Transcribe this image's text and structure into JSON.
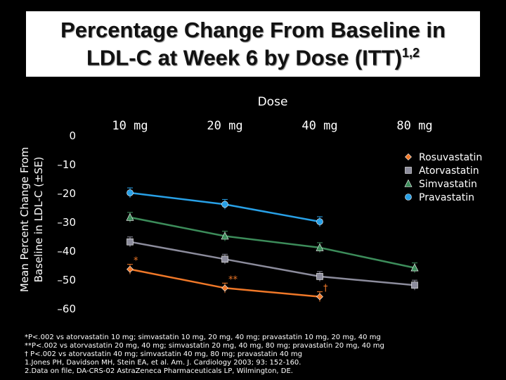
{
  "title": {
    "line1": "Percentage Change From Baseline in",
    "line2": "LDL-C at Week 6 by Dose (ITT)",
    "refs": "1,2"
  },
  "colors": {
    "background": "#000000",
    "Rosuvastatin": "#f07828",
    "Atorvastatin": "#8c8c9c",
    "Simvastatin": "#3c8c5a",
    "Pravastatin": "#28a0e6"
  },
  "chart_data": {
    "type": "line",
    "title": "Percentage Change From Baseline in LDL-C at Week 6 by Dose (ITT)",
    "xlabel": "Dose",
    "ylabel": "Mean Percent Change From Baseline in LDL-C (±SE)",
    "categories": [
      "10 mg",
      "20 mg",
      "40 mg",
      "80 mg"
    ],
    "ylim": [
      -60,
      0
    ],
    "yticks": [
      0,
      -10,
      -20,
      -30,
      -40,
      -50,
      -60
    ],
    "ytick_labels": [
      "0",
      "–10",
      "–20",
      "–30",
      "–40",
      "–50",
      "–60"
    ],
    "grid": false,
    "legend_position": "top-right",
    "series": [
      {
        "name": "Rosuvastatin",
        "marker": "diamond",
        "values": [
          -46.5,
          -53,
          -56,
          null
        ],
        "annotations": [
          "*",
          "**",
          "†",
          null
        ]
      },
      {
        "name": "Atorvastatin",
        "marker": "square",
        "values": [
          -37,
          -43,
          -49,
          -52
        ],
        "annotations": [
          null,
          null,
          null,
          null
        ]
      },
      {
        "name": "Simvastatin",
        "marker": "triangle",
        "values": [
          -28.5,
          -35,
          -39,
          -46
        ],
        "annotations": [
          null,
          null,
          null,
          null
        ]
      },
      {
        "name": "Pravastatin",
        "marker": "circle",
        "values": [
          -20,
          -24,
          -30,
          null
        ],
        "annotations": [
          null,
          null,
          null,
          null
        ]
      }
    ]
  },
  "footnotes": [
    "*P<.002 vs atorvastatin 10 mg; simvastatin 10 mg, 20 mg, 40 mg; pravastatin 10 mg, 20 mg, 40 mg",
    "**P<.002 vs atorvastatin 20 mg, 40 mg; simvastatin 20 mg, 40 mg, 80 mg; pravastatin 20 mg, 40 mg",
    "† P<.002 vs atorvastatin 40 mg; simvastatin 40 mg, 80 mg; pravastatin 40 mg",
    "1.Jones PH, Davidson MH, Stein EA, et al. Am. J. Cardiology 2003; 93: 152-160.",
    "2.Data on file, DA-CRS-02 AstraZeneca Pharmaceuticals LP, Wilmington, DE."
  ]
}
